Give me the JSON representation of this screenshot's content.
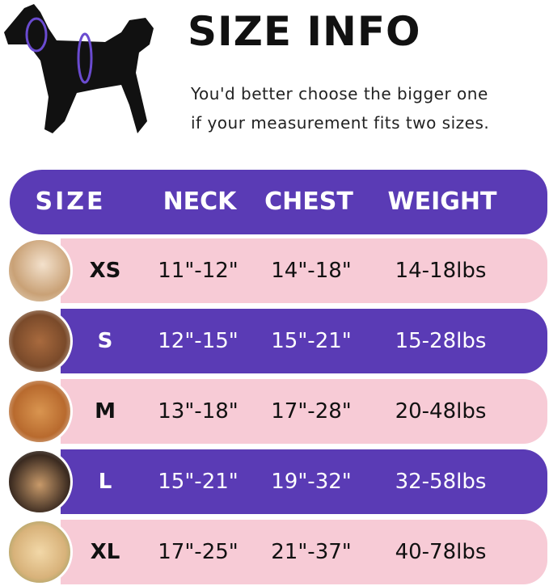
{
  "header": {
    "title": "SIZE INFO",
    "subtitle_line1": "You'd better choose the bigger one",
    "subtitle_line2": "if your measurement fits two sizes."
  },
  "colors": {
    "purple": "#5a3bb5",
    "pink": "#f7cbd6"
  },
  "table": {
    "columns": [
      "SIZE",
      "NECK",
      "CHEST",
      "WEIGHT"
    ],
    "rows": [
      {
        "size": "XS",
        "neck": "11\"-12\"",
        "chest": "14\"-18\"",
        "weight": "14-18lbs"
      },
      {
        "size": "S",
        "neck": "12\"-15\"",
        "chest": "15\"-21\"",
        "weight": "15-28lbs"
      },
      {
        "size": "M",
        "neck": "13\"-18\"",
        "chest": "17\"-28\"",
        "weight": "20-48lbs"
      },
      {
        "size": "L",
        "neck": "15\"-21\"",
        "chest": "19\"-32\"",
        "weight": "32-58lbs"
      },
      {
        "size": "XL",
        "neck": "17\"-25\"",
        "chest": "21\"-37\"",
        "weight": "40-78lbs"
      }
    ]
  }
}
